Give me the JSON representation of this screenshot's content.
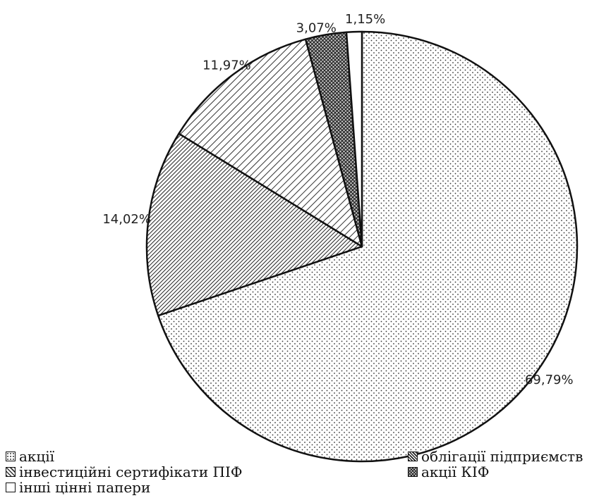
{
  "chart_data": {
    "type": "pie",
    "title": "",
    "start": "12 o'clock, clockwise",
    "slices": [
      {
        "label": "акції",
        "value": 69.79,
        "value_label": "69,79%",
        "pattern": "dots"
      },
      {
        "label": "облігації підприємств",
        "value": 14.02,
        "value_label": "14,02%",
        "pattern": "dense-diagonal"
      },
      {
        "label": "інвестиційні сертифікати ПІФ",
        "value": 11.97,
        "value_label": "11,97%",
        "pattern": "wide-diagonal"
      },
      {
        "label": "акції КІФ",
        "value": 3.07,
        "value_label": "3,07%",
        "pattern": "crosshatch"
      },
      {
        "label": "інші цінні папери",
        "value": 1.15,
        "value_label": "1,15%",
        "pattern": "blank"
      }
    ],
    "legend_position": "bottom"
  }
}
